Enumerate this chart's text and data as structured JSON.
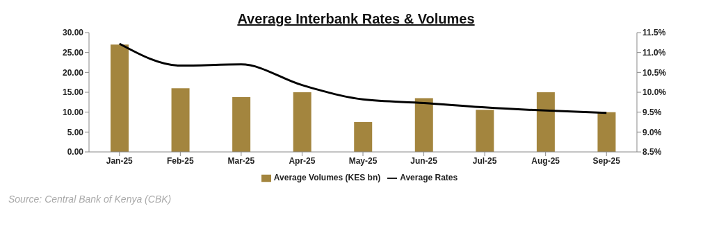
{
  "chart_data": {
    "type": "bar",
    "title": "Average Interbank Rates & Volumes",
    "categories": [
      "Jan-25",
      "Feb-25",
      "Mar-25",
      "Apr-25",
      "May-25",
      "Jun-25",
      "Jul-25",
      "Aug-25",
      "Sep-25"
    ],
    "series": [
      {
        "name": "Average Volumes (KES bn)",
        "color": "#a3853e",
        "values": [
          27.0,
          16.0,
          13.8,
          15.0,
          7.5,
          13.5,
          10.6,
          15.0,
          10.0
        ]
      },
      {
        "name": "Average Rates",
        "type": "line",
        "axis": "y2",
        "color": "#000000",
        "values": [
          11.22,
          10.67,
          10.7,
          10.18,
          9.82,
          9.73,
          9.62,
          9.54,
          9.48
        ]
      }
    ],
    "ylim": [
      0,
      30
    ],
    "yticks": [
      {
        "value": 0,
        "label": "0.00"
      },
      {
        "value": 5,
        "label": "5.00"
      },
      {
        "value": 10,
        "label": "10.00"
      },
      {
        "value": 15,
        "label": "15.00"
      },
      {
        "value": 20,
        "label": "20.00"
      },
      {
        "value": 25,
        "label": "25.00"
      },
      {
        "value": 30,
        "label": "30.00"
      }
    ],
    "y2lim": [
      8.5,
      11.5
    ],
    "y2ticks": [
      {
        "value": 8.5,
        "label": "8.5%"
      },
      {
        "value": 9,
        "label": "9.0%"
      },
      {
        "value": 9.5,
        "label": "9.5%"
      },
      {
        "value": 10,
        "label": "10.0%"
      },
      {
        "value": 10.5,
        "label": "10.5%"
      },
      {
        "value": 11,
        "label": "11.0%"
      },
      {
        "value": 11.5,
        "label": "11.5%"
      }
    ],
    "grid": false,
    "legend": "bottom",
    "marker": "none",
    "annotations": [
      "Source: Central Bank of Kenya (CBK)"
    ]
  }
}
